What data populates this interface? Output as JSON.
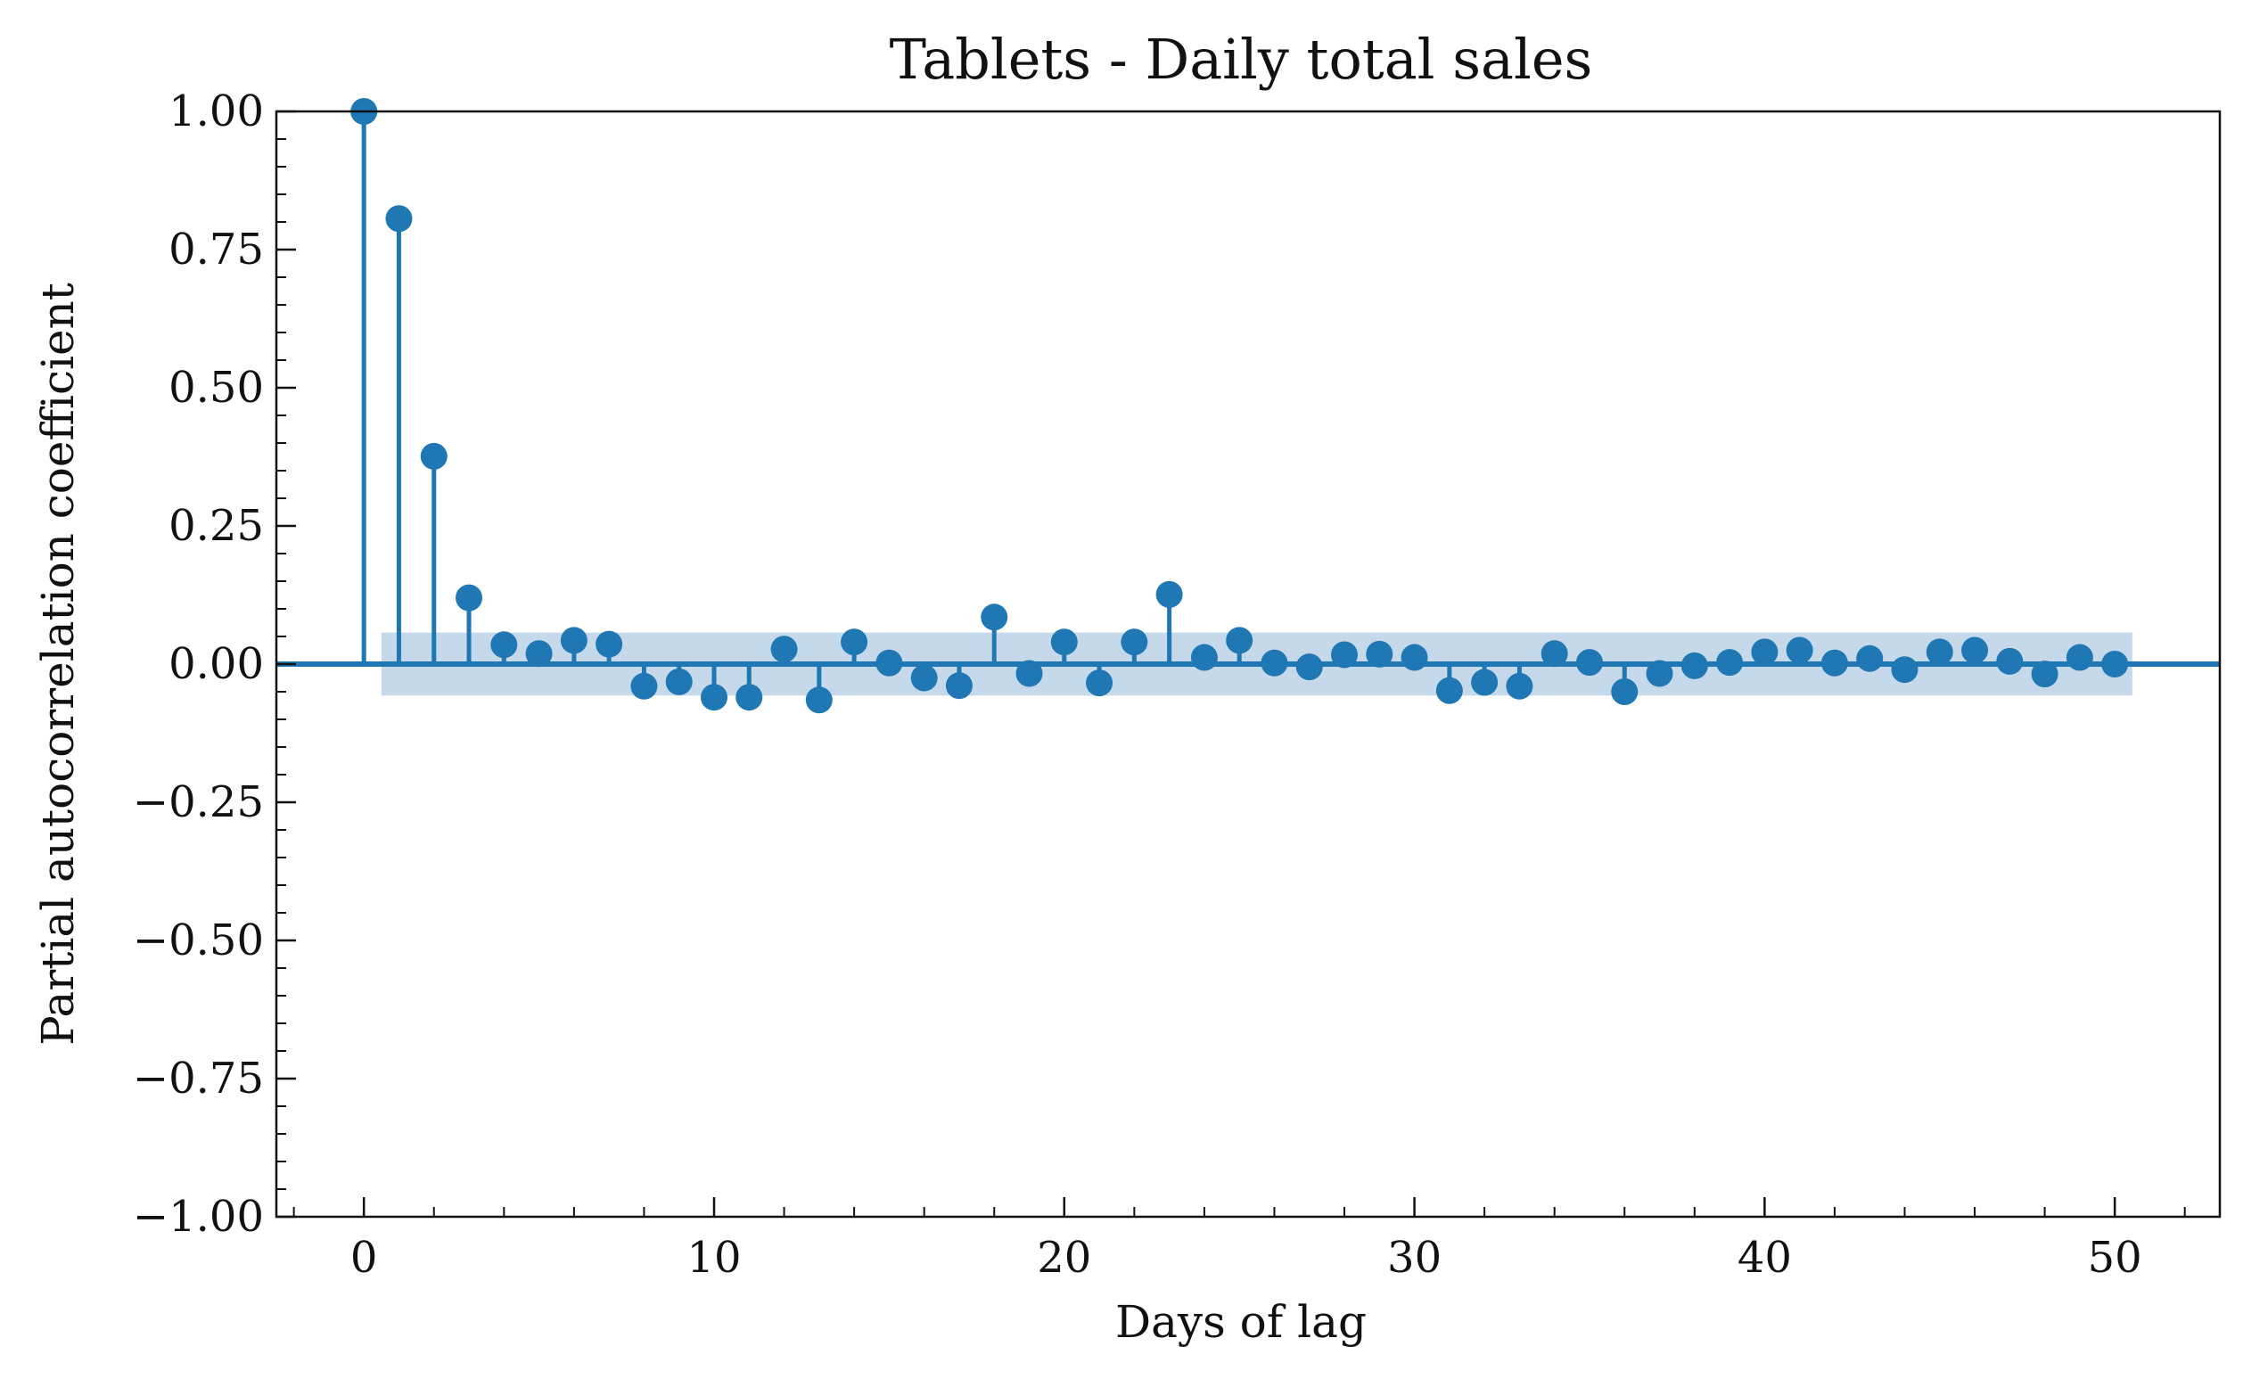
{
  "chart_data": {
    "type": "stem",
    "title": "Tablets - Daily total sales",
    "xlabel": "Days of lag",
    "ylabel": "Partial autocorrelation coefficient",
    "xlim": [
      -2.5,
      53
    ],
    "ylim": [
      -1.0,
      1.0
    ],
    "x_ticks": [
      0,
      10,
      20,
      30,
      40,
      50
    ],
    "x_tick_labels": [
      "0",
      "10",
      "20",
      "30",
      "40",
      "50"
    ],
    "y_ticks": [
      -1.0,
      -0.75,
      -0.5,
      -0.25,
      0.0,
      0.25,
      0.5,
      0.75,
      1.0
    ],
    "y_tick_labels": [
      "−1.00",
      "−0.75",
      "−0.50",
      "−0.25",
      "0.00",
      "0.25",
      "0.50",
      "0.75",
      "1.00"
    ],
    "grid": false,
    "confidence_interval": {
      "x_start": 0.5,
      "x_end": 50.5,
      "lower": -0.057,
      "upper": 0.057
    },
    "colors": {
      "series": "#1f77b4",
      "band": "#c5d9ea"
    },
    "series": [
      {
        "lags": [
          0,
          1,
          2,
          3,
          4,
          5,
          6,
          7,
          8,
          9,
          10,
          11,
          12,
          13,
          14,
          15,
          16,
          17,
          18,
          19,
          20,
          21,
          22,
          23,
          24,
          25,
          26,
          27,
          28,
          29,
          30,
          31,
          32,
          33,
          34,
          35,
          36,
          37,
          38,
          39,
          40,
          41,
          42,
          43,
          44,
          45,
          46,
          47,
          48,
          49,
          50
        ],
        "values": [
          1.0,
          0.806,
          0.376,
          0.12,
          0.035,
          0.019,
          0.043,
          0.036,
          -0.04,
          -0.032,
          -0.06,
          -0.06,
          0.027,
          -0.065,
          0.04,
          0.002,
          -0.025,
          -0.039,
          0.085,
          -0.017,
          0.04,
          -0.034,
          0.04,
          0.126,
          0.012,
          0.043,
          0.002,
          -0.005,
          0.017,
          0.018,
          0.012,
          -0.048,
          -0.033,
          -0.04,
          0.019,
          0.003,
          -0.05,
          -0.017,
          -0.003,
          0.003,
          0.022,
          0.025,
          0.002,
          0.01,
          -0.01,
          0.022,
          0.025,
          0.005,
          -0.018,
          0.012,
          0.0
        ]
      }
    ]
  }
}
